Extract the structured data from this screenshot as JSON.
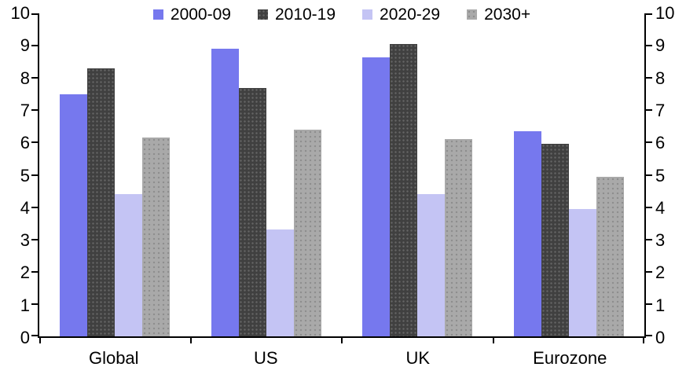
{
  "chart_data": {
    "type": "bar",
    "title": "",
    "categories": [
      "Global",
      "US",
      "UK",
      "Eurozone"
    ],
    "series": [
      {
        "name": "2000-09",
        "color": "#7678ee",
        "pattern": "solid",
        "values": [
          7.5,
          8.9,
          8.65,
          6.35
        ]
      },
      {
        "name": "2010-19",
        "color": "#404040",
        "pattern": "dots-light",
        "values": [
          8.3,
          7.7,
          9.05,
          5.95
        ]
      },
      {
        "name": "2020-29",
        "color": "#c4c4f4",
        "pattern": "solid",
        "values": [
          4.4,
          3.3,
          4.4,
          3.95
        ]
      },
      {
        "name": "2030+",
        "color": "#a9a9a9",
        "pattern": "dots-dark",
        "values": [
          6.15,
          6.4,
          6.1,
          4.95
        ]
      }
    ],
    "y_axis_left": {
      "min": 0,
      "max": 10,
      "step": 1,
      "ticks": [
        "0",
        "1",
        "2",
        "3",
        "4",
        "5",
        "6",
        "7",
        "8",
        "9",
        "10"
      ]
    },
    "y_axis_right": {
      "min": 0,
      "max": 10,
      "step": 1,
      "ticks": [
        "0",
        "1",
        "2",
        "3",
        "4",
        "5",
        "6",
        "7",
        "8",
        "9",
        "10"
      ]
    },
    "legend_position": "top",
    "grid": false,
    "axis_color": "#000000",
    "background_color": "#ffffff"
  }
}
